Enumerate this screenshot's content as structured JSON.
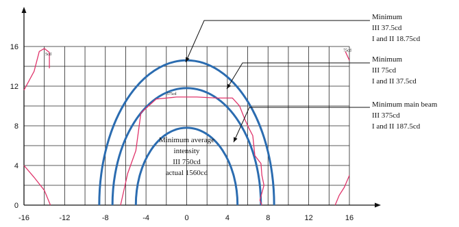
{
  "chart_data": {
    "type": "line",
    "title": "",
    "xlabel": "",
    "ylabel": "",
    "xlim": [
      -16,
      16
    ],
    "ylim": [
      0,
      16
    ],
    "x_ticks": [
      "-16",
      "-12",
      "-8",
      "-4",
      "0",
      "4",
      "8",
      "12",
      "16"
    ],
    "y_ticks": [
      "0",
      "4",
      "8",
      "12",
      "16"
    ],
    "grid": true,
    "series": [
      {
        "name": "",
        "kind": "circle",
        "center": [
          0,
          0
        ],
        "radius_x": 8.6,
        "radius_y": 14.6,
        "color": "#2b6cb0"
      },
      {
        "name": "",
        "kind": "circle",
        "center": [
          0,
          0
        ],
        "radius_x": 7.3,
        "radius_y": 11.8,
        "color": "#2b6cb0"
      },
      {
        "name": "",
        "kind": "circle",
        "center": [
          0,
          0
        ],
        "radius_x": 5.0,
        "radius_y": 7.8,
        "color": "#2b6cb0"
      },
      {
        "name": "",
        "kind": "contour",
        "color": "#e0336a",
        "x": [
          -6.5,
          -5.8,
          -5.0,
          -4.5,
          -3.0,
          -1.0,
          1.0,
          3.0,
          4.5,
          5.2,
          5.7,
          6.1,
          6.5,
          6.7,
          7.3,
          7.4,
          7.6,
          7.2,
          7.4
        ],
        "y": [
          0,
          3.2,
          5.5,
          9.3,
          10.7,
          10.9,
          10.9,
          10.8,
          10.8,
          10.0,
          8.7,
          7.8,
          7.0,
          5.0,
          4.2,
          3.0,
          2.0,
          0.5,
          0
        ]
      },
      {
        "name": "",
        "kind": "contour",
        "color": "#e0336a",
        "x": [
          -16.0,
          -15.0,
          -14.5,
          -14.0,
          -13.5,
          -13.5
        ],
        "y": [
          11.6,
          13.5,
          15.5,
          15.8,
          15.4,
          13.8
        ]
      },
      {
        "name": "",
        "kind": "contour",
        "color": "#e0336a",
        "x": [
          -16.0,
          -15.0,
          -14.0,
          -13.4
        ],
        "y": [
          4.0,
          2.8,
          1.5,
          0.0
        ]
      },
      {
        "name": "",
        "kind": "contour",
        "color": "#e0336a",
        "x": [
          14.6,
          15.0,
          15.5,
          16.0
        ],
        "y": [
          0.0,
          1.0,
          1.8,
          3.0
        ]
      },
      {
        "name": "",
        "kind": "contour",
        "color": "#e0336a",
        "x": [
          15.6,
          16.0
        ],
        "y": [
          15.5,
          14.6
        ]
      }
    ],
    "contour_labels": [
      {
        "text": "5cd",
        "x": -13.9,
        "y": 15.1
      },
      {
        "text": "375cd",
        "x": -2.0,
        "y": 11.1
      },
      {
        "text": "75cd",
        "x": 15.4,
        "y": 15.5
      }
    ],
    "annotations": [
      {
        "lines": [
          "Minimum",
          "III 37.5cd",
          "I and II 18.75cd"
        ]
      },
      {
        "lines": [
          "Minimum",
          "III 75cd",
          "I and II 37.5cd"
        ]
      },
      {
        "lines": [
          "Minimum main beam",
          "III 375cd",
          "I and II 187.5cd"
        ]
      }
    ],
    "center_note": [
      "Minimum average",
      "intensity",
      "III 750cd",
      "actual 1560cd"
    ]
  }
}
